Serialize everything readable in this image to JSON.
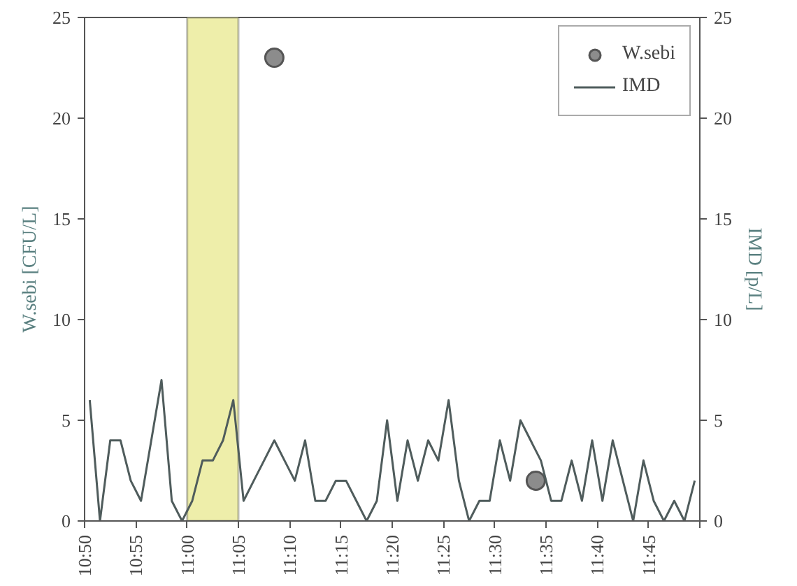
{
  "chart_data": {
    "type": "line",
    "ylabel": "W.sebi [CFU/L]",
    "y2label": "IMD [p/L]",
    "xlim": [
      10.8333,
      11.8333
    ],
    "xticks": [
      {
        "value": 10.8333,
        "label": "10:50"
      },
      {
        "value": 10.9167,
        "label": "10:55"
      },
      {
        "value": 11.0,
        "label": "11:00"
      },
      {
        "value": 11.0833,
        "label": "11:05"
      },
      {
        "value": 11.1667,
        "label": "11:10"
      },
      {
        "value": 11.25,
        "label": "11:15"
      },
      {
        "value": 11.3333,
        "label": "11:20"
      },
      {
        "value": 11.4167,
        "label": "11:25"
      },
      {
        "value": 11.5,
        "label": "11:30"
      },
      {
        "value": 11.5833,
        "label": "11:35"
      },
      {
        "value": 11.6667,
        "label": "11:40"
      },
      {
        "value": 11.75,
        "label": "11:45"
      },
      {
        "value": 11.8333,
        "label": null
      }
    ],
    "ylim": [
      0,
      25
    ],
    "yticks": [
      0,
      5,
      10,
      15,
      20,
      25
    ],
    "y2lim": [
      0,
      25
    ],
    "y2ticks": [
      0,
      5,
      10,
      15,
      20,
      25
    ],
    "bands": [
      {
        "axis": "x",
        "from": 11.0,
        "to": 11.0833,
        "color": "#eeeeaa"
      }
    ],
    "legend": "top right",
    "series": [
      {
        "name": "W.sebi",
        "type": "scatter",
        "marker": "circle",
        "color": "#8c8c8c",
        "x": [
          11.1417,
          11.5667
        ],
        "values": [
          23,
          2
        ]
      },
      {
        "name": "IMD",
        "axis": "y2",
        "color": "#4f5c5c",
        "line_style": "solid",
        "x": [
          10.8417,
          10.8583,
          10.875,
          10.8917,
          10.9083,
          10.925,
          10.9417,
          10.9583,
          10.975,
          10.9917,
          11.0083,
          11.025,
          11.0417,
          11.0583,
          11.075,
          11.0917,
          11.1083,
          11.125,
          11.1417,
          11.1583,
          11.175,
          11.1917,
          11.2083,
          11.225,
          11.2417,
          11.2583,
          11.275,
          11.2917,
          11.3083,
          11.325,
          11.3417,
          11.3583,
          11.375,
          11.3917,
          11.4083,
          11.425,
          11.4417,
          11.4583,
          11.475,
          11.4917,
          11.5083,
          11.525,
          11.5417,
          11.5583,
          11.575,
          11.5917,
          11.6083,
          11.625,
          11.6417,
          11.6583,
          11.675,
          11.6917,
          11.7083,
          11.725,
          11.7417,
          11.7583,
          11.775,
          11.7917,
          11.8083,
          11.825
        ],
        "values": [
          6,
          0,
          4,
          4,
          2,
          1,
          4,
          7,
          1,
          0,
          1,
          3,
          3,
          4,
          6,
          1,
          2,
          3,
          4,
          3,
          2,
          4,
          1,
          1,
          2,
          2,
          1,
          0,
          1,
          5,
          1,
          4,
          2,
          4,
          3,
          6,
          2,
          0,
          1,
          1,
          4,
          2,
          5,
          4,
          3,
          1,
          1,
          3,
          1,
          4,
          1,
          4,
          2,
          0,
          3,
          1,
          0,
          1,
          0,
          2
        ]
      }
    ]
  }
}
